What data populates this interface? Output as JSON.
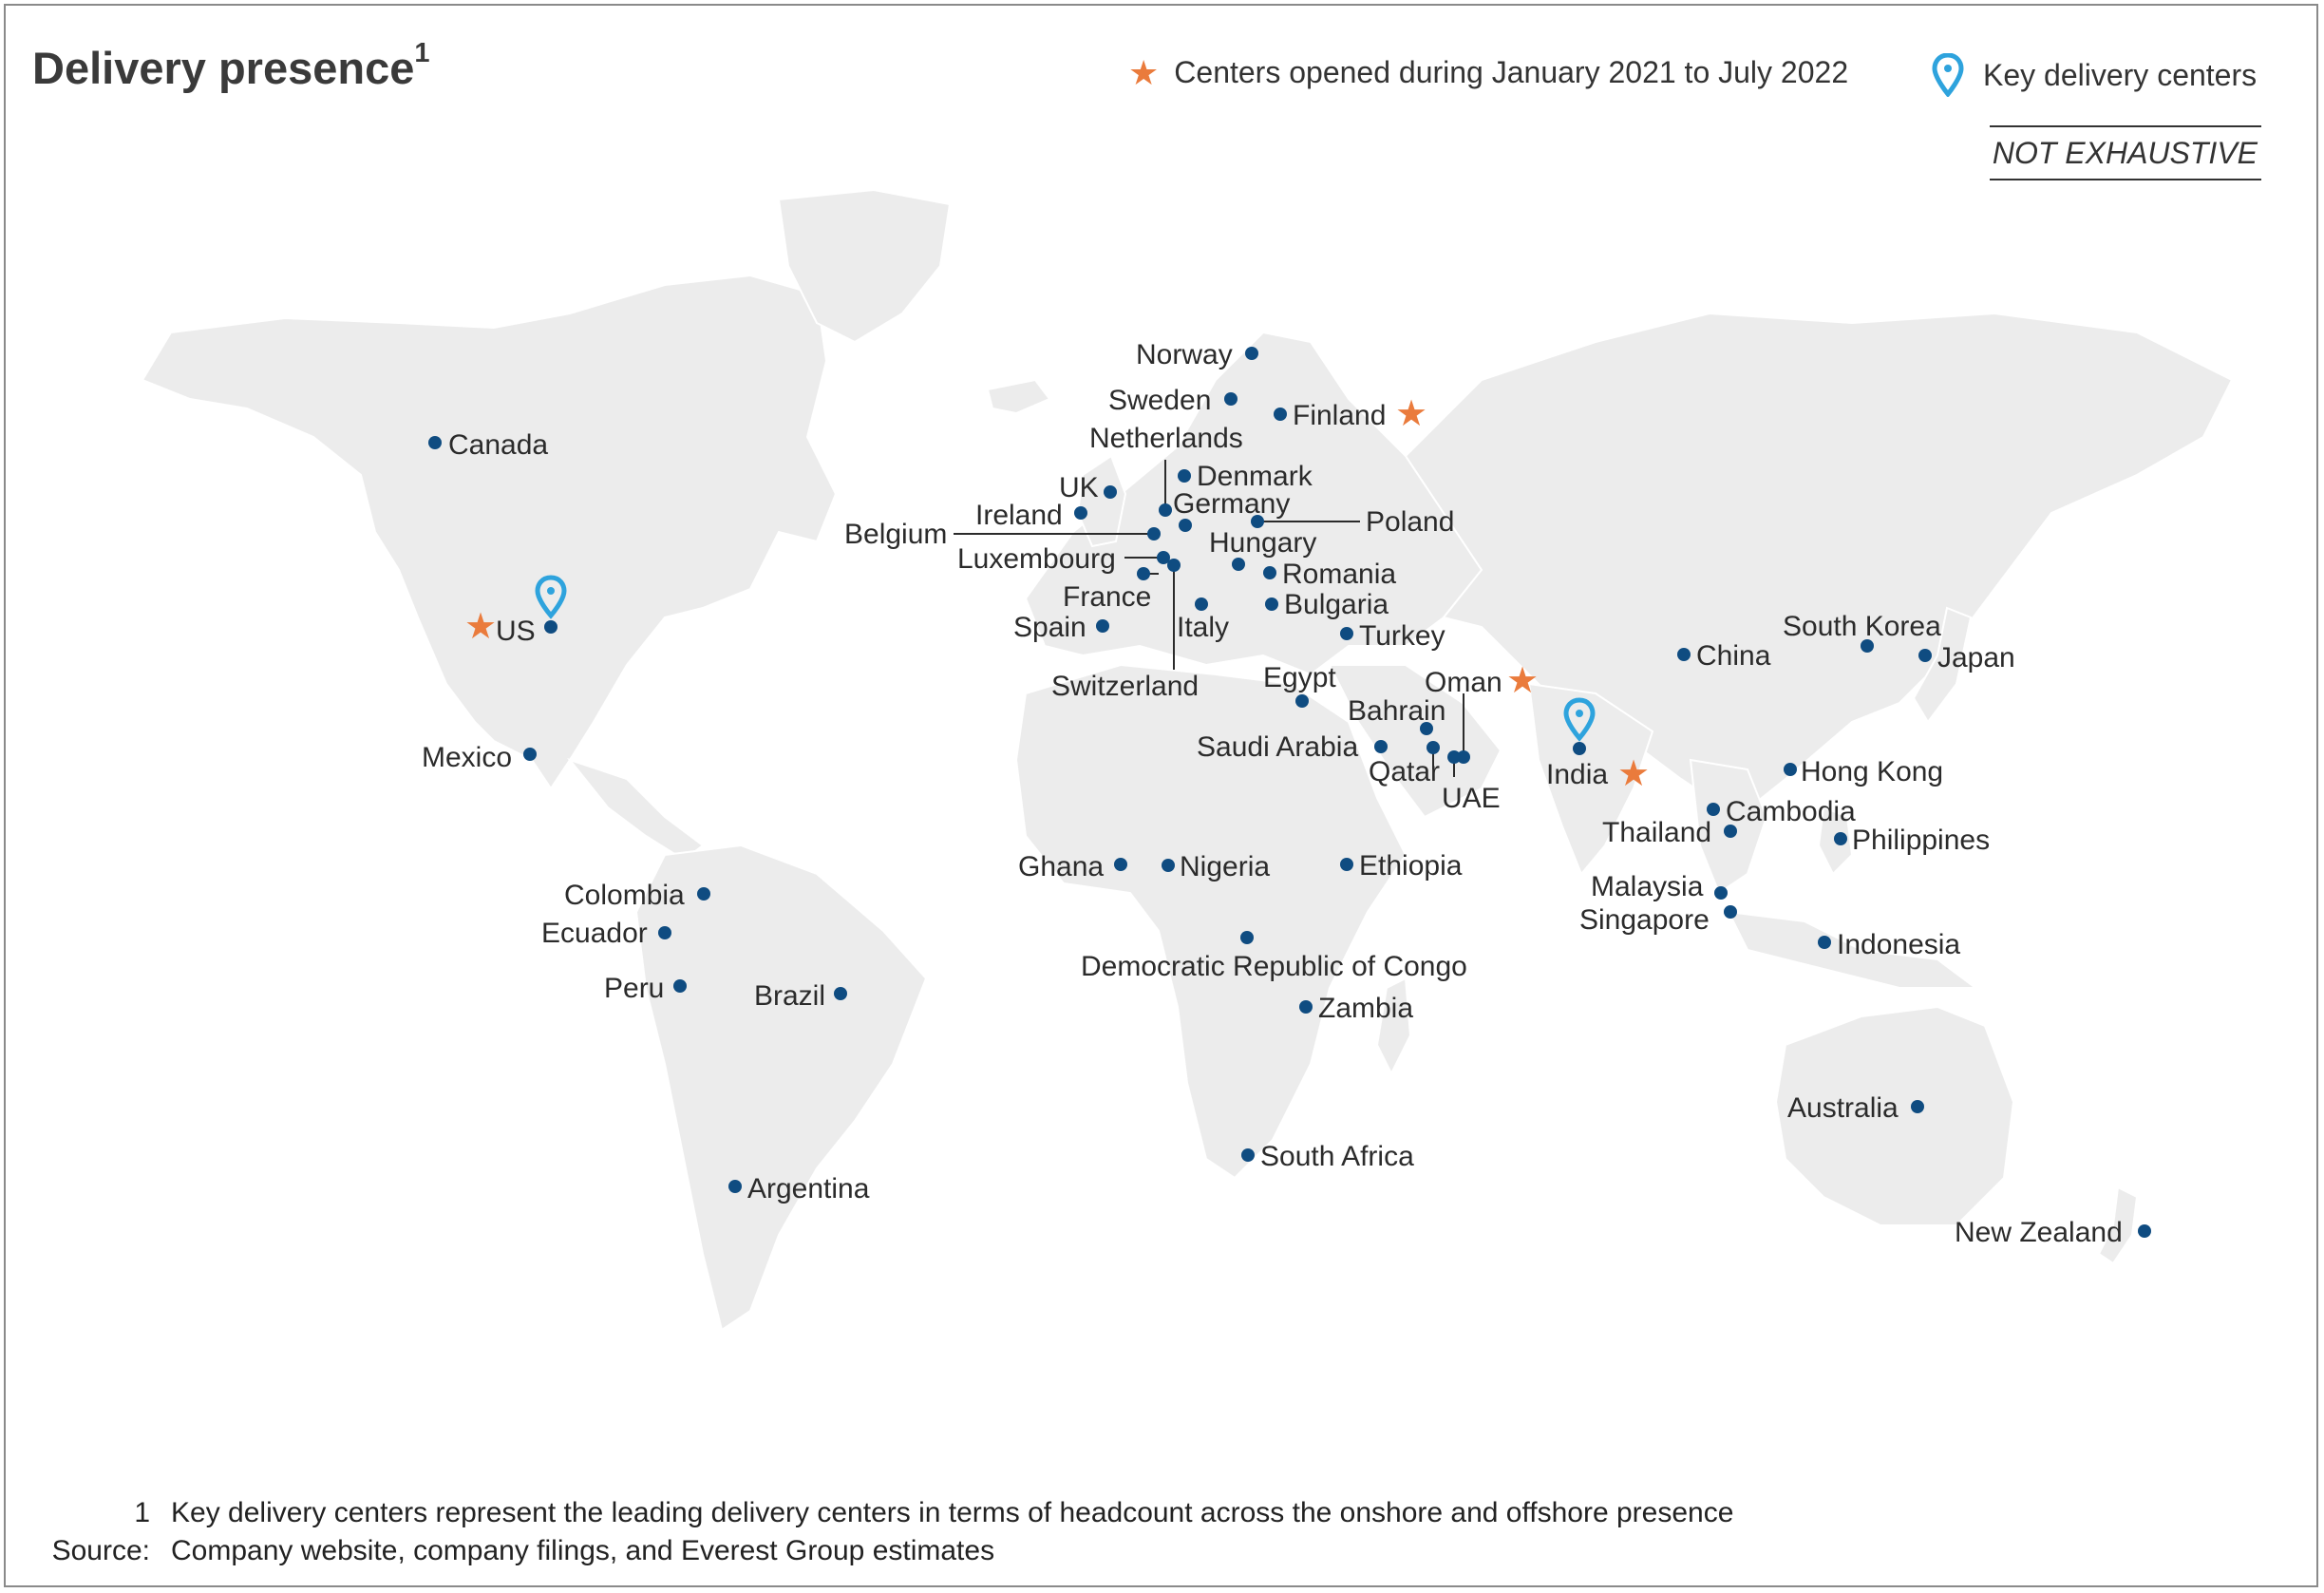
{
  "title": "Delivery presence",
  "title_superscript": "1",
  "legend": {
    "new_centers": "Centers opened during January 2021 to July 2022",
    "key_centers": "Key delivery centers"
  },
  "badge": "NOT EXHAUSTIVE",
  "colors": {
    "dot": "#0f4c81",
    "star": "#ea7b3c",
    "pin": "#2ea3dd",
    "land": "#ececec",
    "border": "#ffffff"
  },
  "icons": {
    "new_center": "star-icon",
    "key_center": "map-pin-icon",
    "location": "location-dot-icon"
  },
  "locations": [
    {
      "name": "Canada"
    },
    {
      "name": "US",
      "star": true,
      "pin": true
    },
    {
      "name": "Mexico"
    },
    {
      "name": "Colombia"
    },
    {
      "name": "Ecuador"
    },
    {
      "name": "Peru"
    },
    {
      "name": "Brazil"
    },
    {
      "name": "Argentina"
    },
    {
      "name": "Norway"
    },
    {
      "name": "Sweden"
    },
    {
      "name": "Finland",
      "star": true
    },
    {
      "name": "Netherlands"
    },
    {
      "name": "Denmark"
    },
    {
      "name": "UK"
    },
    {
      "name": "Germany"
    },
    {
      "name": "Ireland"
    },
    {
      "name": "Poland"
    },
    {
      "name": "Belgium"
    },
    {
      "name": "Hungary"
    },
    {
      "name": "Luxembourg"
    },
    {
      "name": "Romania"
    },
    {
      "name": "France"
    },
    {
      "name": "Bulgaria"
    },
    {
      "name": "Spain"
    },
    {
      "name": "Italy"
    },
    {
      "name": "Turkey"
    },
    {
      "name": "Switzerland"
    },
    {
      "name": "Egypt"
    },
    {
      "name": "Oman",
      "star": true
    },
    {
      "name": "Bahrain"
    },
    {
      "name": "Saudi Arabia"
    },
    {
      "name": "Qatar"
    },
    {
      "name": "UAE"
    },
    {
      "name": "India",
      "star": true,
      "pin": true
    },
    {
      "name": "China"
    },
    {
      "name": "South Korea"
    },
    {
      "name": "Japan"
    },
    {
      "name": "Hong Kong"
    },
    {
      "name": "Cambodia"
    },
    {
      "name": "Thailand"
    },
    {
      "name": "Philippines"
    },
    {
      "name": "Malaysia"
    },
    {
      "name": "Singapore"
    },
    {
      "name": "Indonesia"
    },
    {
      "name": "Ghana"
    },
    {
      "name": "Nigeria"
    },
    {
      "name": "Ethiopia"
    },
    {
      "name": "Democratic Republic of Congo"
    },
    {
      "name": "Zambia"
    },
    {
      "name": "South Africa"
    },
    {
      "name": "Australia"
    },
    {
      "name": "New Zealand"
    }
  ],
  "footnotes": [
    {
      "key": "1",
      "text": "Key delivery centers represent the leading delivery centers in terms of headcount across the onshore and offshore presence"
    },
    {
      "key": "Source:",
      "text": "Company website, company filings, and Everest Group estimates"
    }
  ]
}
